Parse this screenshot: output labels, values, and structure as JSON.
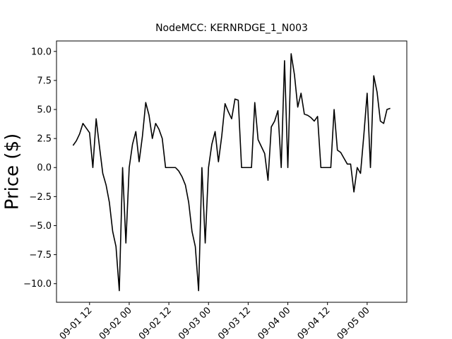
{
  "chart_data": {
    "type": "line",
    "title": "NodeMCC: KERNRDGE_1_N003",
    "y_label": "Price ($)",
    "x": [
      "09-01 07",
      "09-01 08",
      "09-01 09",
      "09-01 10",
      "09-01 11",
      "09-01 12",
      "09-01 13",
      "09-01 14",
      "09-01 15",
      "09-01 16",
      "09-01 17",
      "09-01 18",
      "09-01 19",
      "09-01 20",
      "09-01 21",
      "09-01 22",
      "09-01 23",
      "09-02 00",
      "09-02 01",
      "09-02 02",
      "09-02 03",
      "09-02 04",
      "09-02 05",
      "09-02 06",
      "09-02 07",
      "09-02 08",
      "09-02 09",
      "09-02 10",
      "09-02 11",
      "09-02 12",
      "09-02 13",
      "09-02 14",
      "09-02 15",
      "09-02 16",
      "09-02 17",
      "09-02 18",
      "09-02 19",
      "09-02 20",
      "09-02 21",
      "09-02 22",
      "09-02 23",
      "09-03 00",
      "09-03 01",
      "09-03 02",
      "09-03 03",
      "09-03 04",
      "09-03 05",
      "09-03 06",
      "09-03 07",
      "09-03 08",
      "09-03 09",
      "09-03 10",
      "09-03 11",
      "09-03 12",
      "09-03 13",
      "09-03 14",
      "09-03 15",
      "09-03 16",
      "09-03 17",
      "09-03 18",
      "09-03 19",
      "09-03 20",
      "09-03 21",
      "09-03 22",
      "09-03 23",
      "09-04 00",
      "09-04 01",
      "09-04 02",
      "09-04 03",
      "09-04 04",
      "09-04 05",
      "09-04 06",
      "09-04 07",
      "09-04 08",
      "09-04 09",
      "09-04 10",
      "09-04 11",
      "09-04 12",
      "09-04 13",
      "09-04 14",
      "09-04 15",
      "09-04 16",
      "09-04 17",
      "09-04 18",
      "09-04 19",
      "09-04 20",
      "09-04 21",
      "09-04 22",
      "09-04 23",
      "09-05 00",
      "09-05 01",
      "09-05 02",
      "09-05 03",
      "09-05 04",
      "09-05 05",
      "09-05 06",
      "09-05 07"
    ],
    "series": [
      {
        "color": "#000000",
        "values": [
          1.9,
          2.3,
          2.9,
          3.8,
          3.4,
          3.0,
          0.0,
          4.2,
          1.8,
          -0.5,
          -1.5,
          -3.0,
          -5.5,
          -6.8,
          -10.6,
          0.0,
          -6.5,
          0.0,
          2.0,
          3.1,
          0.5,
          2.7,
          5.6,
          4.5,
          2.5,
          3.8,
          3.3,
          2.5,
          0.0,
          0.0,
          0.0,
          0.0,
          -0.3,
          -0.8,
          -1.5,
          -3.0,
          -5.5,
          -6.8,
          -10.6,
          0.0,
          -6.5,
          0.0,
          2.0,
          3.1,
          0.5,
          2.7,
          5.5,
          4.8,
          4.2,
          5.9,
          5.8,
          0.0,
          0.0,
          0.0,
          0.0,
          5.6,
          2.4,
          1.8,
          1.2,
          -1.1,
          3.5,
          4.0,
          4.9,
          0.0,
          9.2,
          0.0,
          9.8,
          8.0,
          5.2,
          6.4,
          4.6,
          4.5,
          4.3,
          4.0,
          4.4,
          0.0,
          0.0,
          0.0,
          0.0,
          5.0,
          1.5,
          1.3,
          0.8,
          0.3,
          0.3,
          -2.1,
          0.0,
          -0.5,
          2.8,
          6.4,
          0.0,
          7.9,
          6.5,
          4.0,
          3.8,
          5.0,
          5.1
        ]
      }
    ],
    "xlim": [
      "09-01 02",
      "09-05 12"
    ],
    "xticks": [
      "09-01 12",
      "09-02 00",
      "09-02 12",
      "09-03 00",
      "09-03 12",
      "09-04 00",
      "09-04 12",
      "09-05 00"
    ],
    "ylim": [
      -11.6,
      10.9
    ],
    "yticks": [
      {
        "value": -10,
        "label": "−10.0"
      },
      {
        "value": -7.5,
        "label": "−7.5"
      },
      {
        "value": -5,
        "label": "−5.0"
      },
      {
        "value": -2.5,
        "label": "−2.5"
      },
      {
        "value": 0,
        "label": "0.0"
      },
      {
        "value": 2.5,
        "label": "2.5"
      },
      {
        "value": 5,
        "label": "5.0"
      },
      {
        "value": 7.5,
        "label": "7.5"
      },
      {
        "value": 10,
        "label": "10.0"
      }
    ],
    "grid": false
  }
}
